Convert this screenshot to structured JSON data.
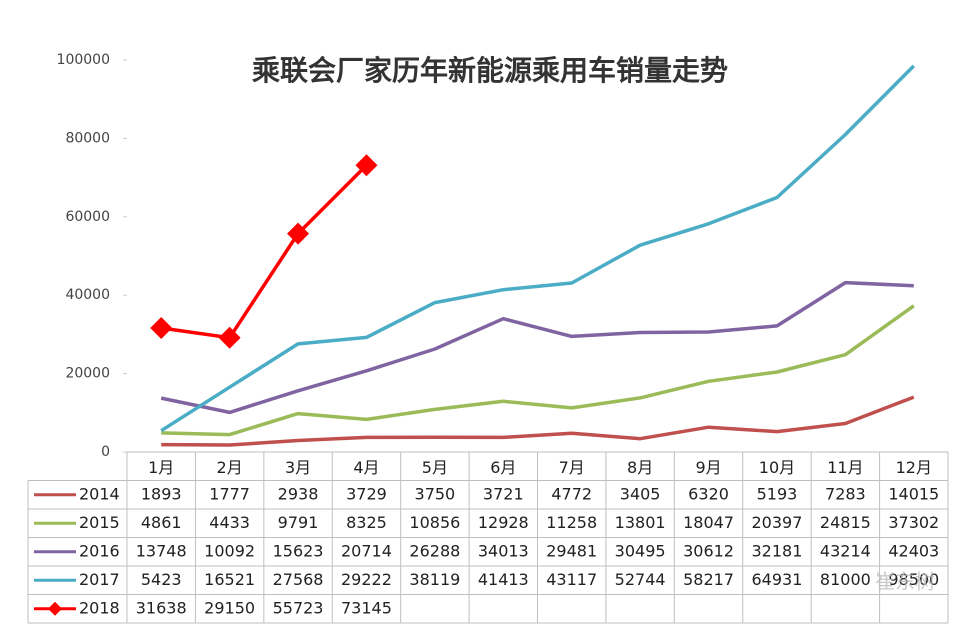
{
  "chart_data": {
    "type": "line",
    "title": "乘联会厂家历年新能源乘用车销量走势",
    "categories": [
      "1月",
      "2月",
      "3月",
      "4月",
      "5月",
      "6月",
      "7月",
      "8月",
      "9月",
      "10月",
      "11月",
      "12月"
    ],
    "series": [
      {
        "name": "2014",
        "color": "#c0504d",
        "values": [
          1893,
          1777,
          2938,
          3729,
          3750,
          3721,
          4772,
          3405,
          6320,
          5193,
          7283,
          14015
        ]
      },
      {
        "name": "2015",
        "color": "#9bbb59",
        "values": [
          4861,
          4433,
          9791,
          8325,
          10856,
          12928,
          11258,
          13801,
          18047,
          20397,
          24815,
          37302
        ]
      },
      {
        "name": "2016",
        "color": "#8064a2",
        "values": [
          13748,
          10092,
          15623,
          20714,
          26288,
          34013,
          29481,
          30495,
          30612,
          32181,
          43214,
          42403
        ]
      },
      {
        "name": "2017",
        "color": "#4bacc6",
        "values": [
          5423,
          16521,
          27568,
          29222,
          38119,
          41413,
          43117,
          52744,
          58217,
          64931,
          81000,
          98500
        ]
      },
      {
        "name": "2018",
        "color": "#ff0000",
        "marker": "diamond",
        "values": [
          31638,
          29150,
          55723,
          73145,
          null,
          null,
          null,
          null,
          null,
          null,
          null,
          null
        ]
      }
    ],
    "ylim": [
      0,
      100000
    ],
    "yticks": [
      0,
      20000,
      40000,
      60000,
      80000,
      100000
    ],
    "data_table": true,
    "watermark": "崔东树"
  }
}
